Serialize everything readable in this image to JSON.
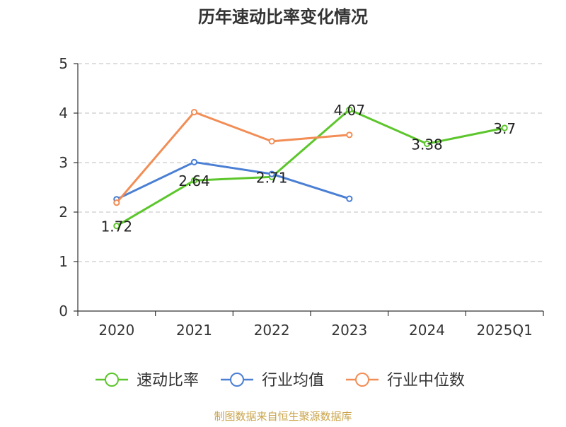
{
  "chart_data": {
    "type": "line",
    "title": "历年速动比率变化情况",
    "categories": [
      "2020",
      "2021",
      "2022",
      "2023",
      "2024",
      "2025Q1"
    ],
    "ylim": [
      0,
      5
    ],
    "yticks": [
      0,
      1,
      2,
      3,
      4,
      5
    ],
    "grid": true,
    "legend_position": "bottom",
    "series": [
      {
        "name": "速动比率",
        "color": "#5cc62c",
        "values": [
          1.72,
          2.64,
          2.71,
          4.07,
          3.38,
          3.7
        ],
        "data_labels": [
          "1.72",
          "2.64",
          "2.71",
          "4.07",
          "3.38",
          "3.7"
        ]
      },
      {
        "name": "行业均值",
        "color": "#4a7fd4",
        "values": [
          2.26,
          3.01,
          2.77,
          2.27,
          null,
          null
        ]
      },
      {
        "name": "行业中位数",
        "color": "#f28d55",
        "values": [
          2.19,
          4.02,
          3.43,
          3.56,
          null,
          null
        ]
      }
    ]
  },
  "source_text": "制图数据来自恒生聚源数据库"
}
